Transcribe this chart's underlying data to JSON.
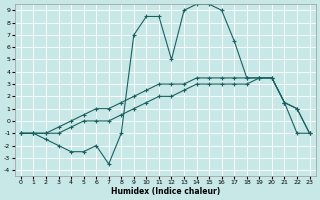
{
  "xlabel": "Humidex (Indice chaleur)",
  "bg_color": "#c8e8e8",
  "grid_color": "#ffffff",
  "line_color": "#1a6060",
  "xlim": [
    -0.5,
    23.5
  ],
  "ylim": [
    -4.5,
    9.5
  ],
  "xticks": [
    0,
    1,
    2,
    3,
    4,
    5,
    6,
    7,
    8,
    9,
    10,
    11,
    12,
    13,
    14,
    15,
    16,
    17,
    18,
    19,
    20,
    21,
    22,
    23
  ],
  "yticks": [
    -4,
    -3,
    -2,
    -1,
    0,
    1,
    2,
    3,
    4,
    5,
    6,
    7,
    8,
    9
  ],
  "line1_x": [
    0,
    1,
    2,
    3,
    4,
    5,
    6,
    7,
    8,
    9,
    10,
    11,
    12,
    13,
    14,
    15,
    16,
    17,
    18,
    19,
    20,
    21,
    22,
    23
  ],
  "line1_y": [
    -1,
    -1,
    -1,
    -0.5,
    0,
    0.5,
    1,
    1,
    1.5,
    2,
    2.5,
    3,
    3,
    3,
    3.5,
    3.5,
    3.5,
    3.5,
    3.5,
    3.5,
    3.5,
    1.5,
    1,
    -1
  ],
  "line2_x": [
    0,
    1,
    2,
    3,
    4,
    5,
    6,
    7,
    8,
    9,
    10,
    11,
    12,
    13,
    14,
    15,
    16,
    17,
    18,
    19,
    20,
    21,
    22,
    23
  ],
  "line2_y": [
    -1,
    -1,
    -1,
    -1,
    -0.5,
    0,
    0,
    0,
    0.5,
    1,
    1.5,
    2,
    2,
    2.5,
    3,
    3,
    3,
    3,
    3,
    3.5,
    3.5,
    1.5,
    1,
    -1
  ],
  "line3_x": [
    0,
    1,
    2,
    3,
    4,
    5,
    6,
    7,
    8,
    9,
    10,
    11,
    12,
    13,
    14,
    15,
    16,
    17,
    18,
    19,
    20,
    21,
    22,
    23
  ],
  "line3_y": [
    -1,
    -1,
    -1.5,
    -2,
    -2.5,
    -2.5,
    -2,
    -3.5,
    -1,
    7,
    8.5,
    8.5,
    5,
    9,
    9.5,
    9.5,
    9,
    6.5,
    3.5,
    3.5,
    3.5,
    1.5,
    -1,
    -1
  ]
}
